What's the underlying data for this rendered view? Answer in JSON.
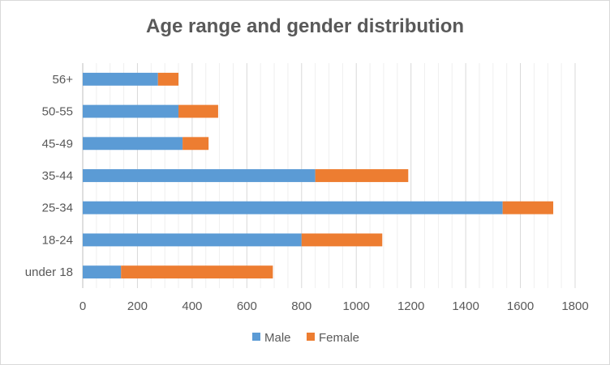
{
  "chart_data": {
    "type": "bar",
    "orientation": "horizontal",
    "stacked": true,
    "title": "Age range and gender distribution",
    "xlabel": "",
    "ylabel": "",
    "categories": [
      "56+",
      "50-55",
      "45-49",
      "35-44",
      "25-34",
      "18-24",
      "under 18"
    ],
    "series": [
      {
        "name": "Male",
        "color": "#5b9bd5",
        "values": [
          275,
          350,
          365,
          850,
          1535,
          800,
          140
        ]
      },
      {
        "name": "Female",
        "color": "#ed7d31",
        "values": [
          75,
          145,
          95,
          340,
          185,
          295,
          555
        ]
      }
    ],
    "xlim": [
      0,
      1800
    ],
    "xticks": [
      0,
      200,
      400,
      600,
      800,
      1000,
      1200,
      1400,
      1600,
      1800
    ],
    "grid": true,
    "legend_position": "bottom"
  }
}
